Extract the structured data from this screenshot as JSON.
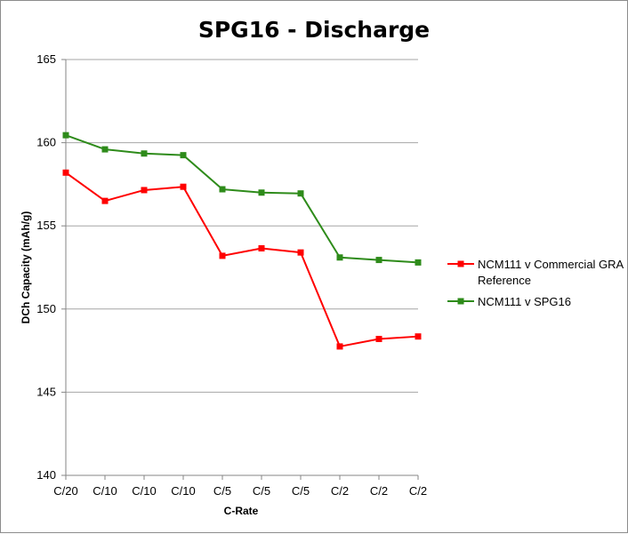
{
  "chart_data": {
    "type": "line",
    "title": "SPG16 - Discharge",
    "xlabel": "C-Rate",
    "ylabel": "DCh Capacity (mAh/g)",
    "categories": [
      "C/20",
      "C/10",
      "C/10",
      "C/10",
      "C/5",
      "C/5",
      "C/5",
      "C/2",
      "C/2",
      "C/2"
    ],
    "ylim": [
      140,
      165
    ],
    "yticks": [
      140,
      145,
      150,
      155,
      160,
      165
    ],
    "grid": true,
    "legend_position": "right",
    "series": [
      {
        "name": "NCM111 v Commercial GRA Reference",
        "legend_lines": [
          "NCM111 v Commercial GRA",
          "Reference"
        ],
        "color": "#ff0000",
        "values": [
          158.2,
          156.5,
          157.15,
          157.35,
          153.2,
          153.65,
          153.4,
          147.75,
          148.2,
          148.35
        ]
      },
      {
        "name": "NCM111 v SPG16",
        "legend_lines": [
          "NCM111 v SPG16"
        ],
        "color": "#2e8b1a",
        "values": [
          160.45,
          159.6,
          159.35,
          159.25,
          157.2,
          157.0,
          156.95,
          153.1,
          152.95,
          152.8
        ]
      }
    ]
  }
}
